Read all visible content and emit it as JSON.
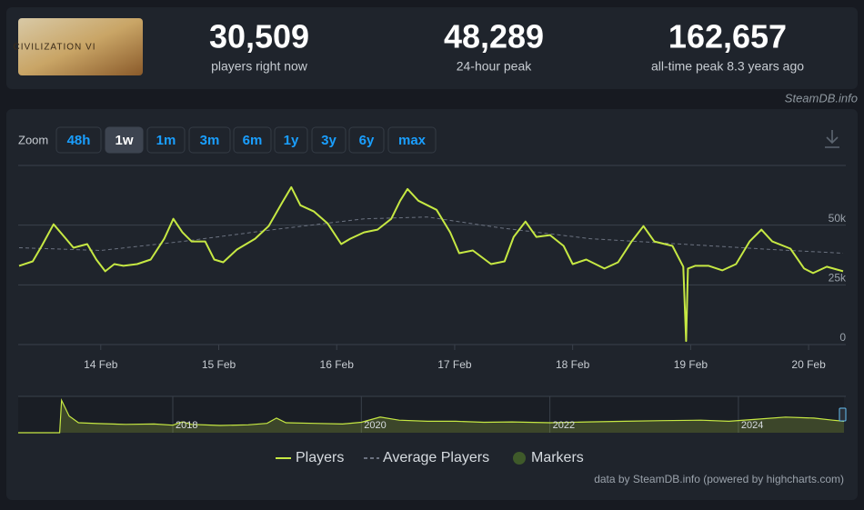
{
  "header": {
    "image_text": "CIVILIZATION VI",
    "stats": [
      {
        "value": "30,509",
        "label": "players right now"
      },
      {
        "value": "48,289",
        "label": "24-hour peak"
      },
      {
        "value": "162,657",
        "label": "all-time peak 8.3 years ago"
      }
    ]
  },
  "watermark": "SteamDB.info",
  "zoom": {
    "label": "Zoom",
    "buttons": [
      "48h",
      "1w",
      "1m",
      "3m",
      "6m",
      "1y",
      "3y",
      "6y",
      "max"
    ],
    "active": 1
  },
  "chart_data": [
    {
      "type": "line",
      "xlim": [
        13.3,
        20.3
      ],
      "xticks": [
        {
          "value": 14,
          "label": "14 Feb"
        },
        {
          "value": 15,
          "label": "15 Feb"
        },
        {
          "value": 16,
          "label": "16 Feb"
        },
        {
          "value": 17,
          "label": "17 Feb"
        },
        {
          "value": 18,
          "label": "18 Feb"
        },
        {
          "value": 19,
          "label": "19 Feb"
        },
        {
          "value": 20,
          "label": "20 Feb"
        }
      ],
      "ylim": [
        0,
        75000
      ],
      "yticks": [
        0,
        {
          "value": 25000,
          "label": "25k"
        },
        {
          "value": 50000,
          "label": "50k"
        }
      ],
      "grid": true,
      "series": [
        {
          "name": "Players",
          "color": "#c6e843",
          "dashed": false,
          "x": [
            13.308,
            13.423,
            13.5,
            13.6,
            13.692,
            13.769,
            13.885,
            13.962,
            14.038,
            14.115,
            14.192,
            14.308,
            14.423,
            14.538,
            14.615,
            14.692,
            14.769,
            14.885,
            14.962,
            15.038,
            15.154,
            15.308,
            15.423,
            15.538,
            15.615,
            15.692,
            15.808,
            15.923,
            16.038,
            16.115,
            16.231,
            16.346,
            16.462,
            16.538,
            16.6,
            16.692,
            16.846,
            16.962,
            17.038,
            17.154,
            17.308,
            17.423,
            17.5,
            17.6,
            17.692,
            17.808,
            17.923,
            18,
            18.115,
            18.269,
            18.385,
            18.5,
            18.6,
            18.692,
            18.846,
            18.938,
            18.962,
            18.977,
            19.038,
            19.154,
            19.269,
            19.385,
            19.5,
            19.6,
            19.692,
            19.846,
            19.962,
            20.038,
            20.154,
            20.292
          ],
          "values": [
            32960,
            34850,
            41290,
            50380,
            45080,
            40530,
            42050,
            35600,
            30680,
            33710,
            32960,
            33710,
            35600,
            44320,
            52650,
            46970,
            43180,
            43180,
            35600,
            34470,
            39770,
            44320,
            49620,
            59470,
            65910,
            58330,
            55680,
            50760,
            42050,
            44320,
            46970,
            48110,
            52650,
            60230,
            65150,
            60230,
            56440,
            46970,
            38260,
            39390,
            33710,
            34850,
            45080,
            51520,
            45080,
            45830,
            41290,
            33710,
            35600,
            31820,
            34470,
            43180,
            49620,
            43180,
            41290,
            32580,
            1500,
            31820,
            32960,
            32960,
            31060,
            33710,
            43180,
            48110,
            43180,
            40150,
            31820,
            29930,
            32580,
            30680
          ]
        },
        {
          "name": "Average Players",
          "color": "#6b7280",
          "dashed": true,
          "x": [
            13.308,
            14.0,
            14.692,
            15.462,
            16.231,
            16.769,
            17.385,
            18.154,
            18.923,
            19.692,
            20.292
          ],
          "values": [
            40530,
            39390,
            43180,
            48110,
            52650,
            53410,
            48870,
            44320,
            42050,
            39770,
            38260
          ]
        },
        {
          "name": "Markers",
          "color": "#3f5a2a",
          "marker": true,
          "x": [],
          "values": []
        }
      ]
    },
    {
      "type": "area",
      "xlim": [
        2016.36,
        2025.12
      ],
      "xticks": [
        2018,
        2020,
        2022,
        2024
      ],
      "ylim": [
        0,
        170000
      ],
      "series": [
        {
          "color": "#c6e843",
          "x": [
            2016.36,
            2016.8,
            2016.82,
            2016.9,
            2017.0,
            2017.2,
            2017.5,
            2017.8,
            2018.0,
            2018.1,
            2018.2,
            2018.5,
            2018.8,
            2019.0,
            2019.1,
            2019.2,
            2019.5,
            2019.8,
            2020.0,
            2020.2,
            2020.4,
            2020.7,
            2021.0,
            2021.3,
            2021.6,
            2022.0,
            2022.4,
            2022.8,
            2023.2,
            2023.6,
            2023.9,
            2024.2,
            2024.5,
            2024.8,
            2025.0,
            2025.12
          ],
          "values": [
            0,
            0,
            155000,
            80000,
            48000,
            44000,
            40000,
            42000,
            36000,
            52000,
            40000,
            35000,
            38000,
            45000,
            70000,
            48000,
            45000,
            42000,
            50000,
            75000,
            60000,
            55000,
            55000,
            50000,
            52000,
            48000,
            52000,
            55000,
            58000,
            60000,
            55000,
            65000,
            75000,
            70000,
            60000,
            55000
          ]
        }
      ]
    }
  ],
  "credits": "data by SteamDB.info (powered by highcharts.com)"
}
